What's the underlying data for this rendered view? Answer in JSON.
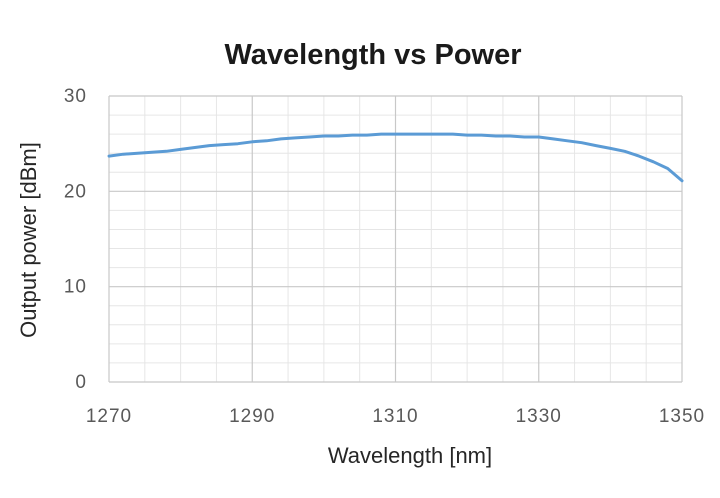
{
  "chart_data": {
    "type": "line",
    "title": "Wavelength vs Power",
    "xlabel": "Wavelength [nm]",
    "ylabel": "Output power [dBm]",
    "xlim": [
      1270,
      1350
    ],
    "ylim": [
      0,
      30
    ],
    "x_major_ticks": [
      1270,
      1290,
      1310,
      1330,
      1350
    ],
    "y_major_ticks": [
      0,
      10,
      20,
      30
    ],
    "x_tick_labels": [
      "1270",
      "1290",
      "1310",
      "1330",
      "1350"
    ],
    "y_tick_labels": [
      "0",
      "10",
      "20",
      "30"
    ],
    "x_minor_step": 5,
    "y_minor_step": 2,
    "grid": true,
    "legend": "none",
    "line_color": "#5b9bd5",
    "x": [
      1270,
      1272,
      1274,
      1276,
      1278,
      1280,
      1282,
      1284,
      1286,
      1288,
      1290,
      1292,
      1294,
      1296,
      1298,
      1300,
      1302,
      1304,
      1306,
      1308,
      1310,
      1312,
      1314,
      1316,
      1318,
      1320,
      1322,
      1324,
      1326,
      1328,
      1330,
      1332,
      1334,
      1336,
      1338,
      1340,
      1342,
      1344,
      1346,
      1348,
      1350
    ],
    "y": [
      23.7,
      23.9,
      24.0,
      24.1,
      24.2,
      24.4,
      24.6,
      24.8,
      24.9,
      25.0,
      25.2,
      25.3,
      25.5,
      25.6,
      25.7,
      25.8,
      25.8,
      25.9,
      25.9,
      26.0,
      26.0,
      26.0,
      26.0,
      26.0,
      26.0,
      25.9,
      25.9,
      25.8,
      25.8,
      25.7,
      25.7,
      25.5,
      25.3,
      25.1,
      24.8,
      24.5,
      24.2,
      23.7,
      23.1,
      22.4,
      21.1
    ]
  }
}
